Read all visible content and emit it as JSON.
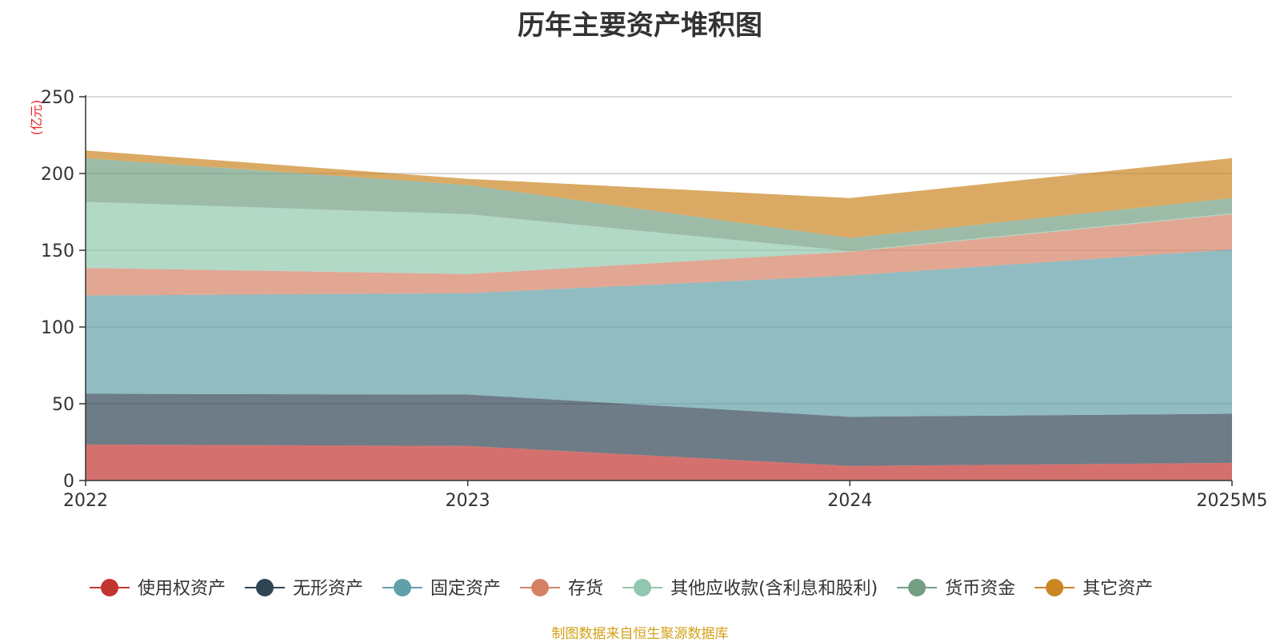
{
  "chart_data": {
    "type": "area",
    "stacked": true,
    "title": "历年主要资产堆积图",
    "unit": "(亿元)",
    "x": [
      "2022",
      "2023",
      "2024",
      "2025M5"
    ],
    "ylim": [
      0,
      250
    ],
    "yticks": [
      0,
      50,
      100,
      150,
      200,
      250
    ],
    "grid": true,
    "legend_position": "bottom",
    "series": [
      {
        "name": "使用权资产",
        "color": "#c23531",
        "values": [
          23.5,
          22.5,
          9.5,
          11.5
        ]
      },
      {
        "name": "无形资产",
        "color": "#2f4554",
        "values": [
          33,
          33.5,
          32,
          32
        ]
      },
      {
        "name": "固定资产",
        "color": "#61a0a8",
        "values": [
          64,
          66,
          92,
          107
        ]
      },
      {
        "name": "存货",
        "color": "#d48265",
        "values": [
          18,
          12.5,
          15.5,
          23
        ]
      },
      {
        "name": "其他应收款(含利息和股利)",
        "color": "#91c7ae",
        "values": [
          43,
          39,
          0.5,
          0.5
        ]
      },
      {
        "name": "货币资金",
        "color": "#749f83",
        "values": [
          28.5,
          19,
          8.5,
          10
        ]
      },
      {
        "name": "其它资产",
        "color": "#ca8622",
        "values": [
          5,
          4,
          26,
          26
        ]
      }
    ]
  },
  "source_note": "制图数据来自恒生聚源数据库"
}
